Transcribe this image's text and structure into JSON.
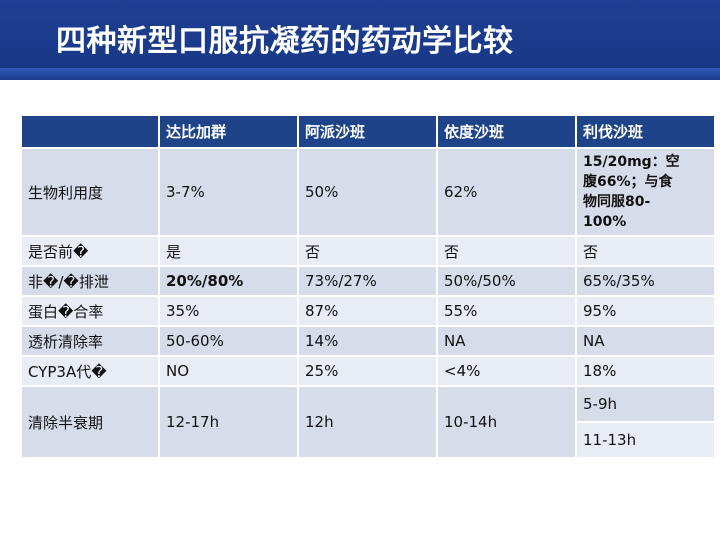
{
  "slide": {
    "title": "四种新型口服抗凝药的药动学比较"
  },
  "table": {
    "headers": [
      "",
      "达比加群",
      "阿派沙班",
      "依度沙班",
      "利伐沙班"
    ],
    "rows": [
      {
        "label": "生物利用度",
        "cells": [
          "3-7%",
          "50%",
          "62%"
        ],
        "last_lines": [
          "15/20mg：空",
          "腹66%；与食",
          "物同服80-",
          "100%"
        ]
      },
      {
        "label": "是否前�",
        "cells": [
          "是",
          "否",
          "否",
          "否"
        ]
      },
      {
        "label": "非�/�排泄",
        "cells": [
          "20%/80%",
          "73%/27%",
          "50%/50%",
          "65%/35%"
        ]
      },
      {
        "label": "蛋白�合率",
        "cells": [
          "35%",
          "87%",
          "55%",
          "95%"
        ]
      },
      {
        "label": "透析清除率",
        "cells": [
          "50-60%",
          "14%",
          "NA",
          "NA"
        ]
      },
      {
        "label": "CYP3A代�",
        "cells": [
          "NO",
          "25%",
          "<4%",
          "18%"
        ]
      },
      {
        "label": "清除半衰期",
        "cells": [
          "12-17h",
          "12h",
          "10-14h"
        ],
        "last_parts": [
          "5-9h",
          "11-13h"
        ]
      }
    ]
  }
}
